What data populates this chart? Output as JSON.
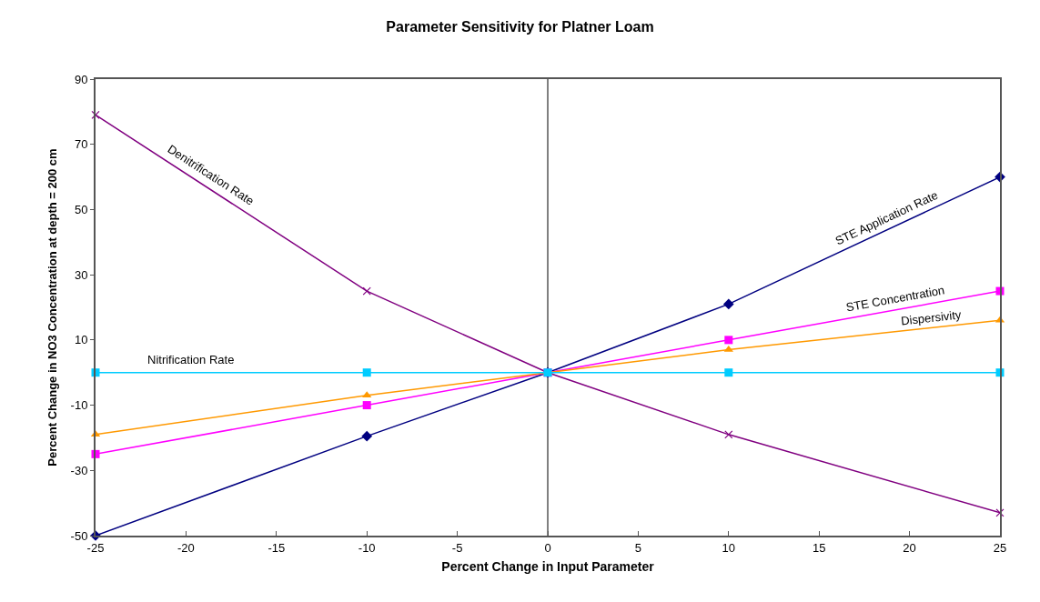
{
  "chart_data": {
    "type": "line",
    "title": "Parameter Sensitivity for Platner Loam",
    "xlabel": "Percent Change in Input Parameter",
    "ylabel": "Percent Change in NO3 Concentration at depth = 200 cm",
    "x": [
      -25,
      -10,
      0,
      10,
      25
    ],
    "series": [
      {
        "name": "Denitrification Rate",
        "color": "#800080",
        "marker": "cross",
        "values": [
          79,
          25,
          0,
          -19,
          -43
        ]
      },
      {
        "name": "STE Application Rate",
        "color": "#000080",
        "marker": "diamond",
        "values": [
          -50,
          -19.5,
          0,
          21,
          60
        ]
      },
      {
        "name": "STE Concentration",
        "color": "#ff00ff",
        "marker": "square",
        "values": [
          -25,
          -10,
          0,
          10,
          25
        ]
      },
      {
        "name": "Dispersivity",
        "color": "#ff9900",
        "marker": "triangle",
        "values": [
          -19,
          -7,
          0,
          7,
          16
        ]
      },
      {
        "name": "Nitrification Rate",
        "color": "#00ccff",
        "marker": "square",
        "values": [
          0,
          0,
          0,
          0,
          0
        ]
      }
    ],
    "xlim": [
      -25,
      25
    ],
    "xticks": [
      -25,
      -20,
      -15,
      -10,
      -5,
      0,
      5,
      10,
      15,
      20,
      25
    ],
    "ylim": [
      -50,
      90
    ],
    "yticks": [
      -50,
      -30,
      -10,
      10,
      30,
      50,
      70,
      90
    ],
    "ref_lines": [
      {
        "axis": "x",
        "value": 0,
        "color": "#000000"
      }
    ],
    "grid": false,
    "legend": false,
    "line_style": "solid"
  }
}
